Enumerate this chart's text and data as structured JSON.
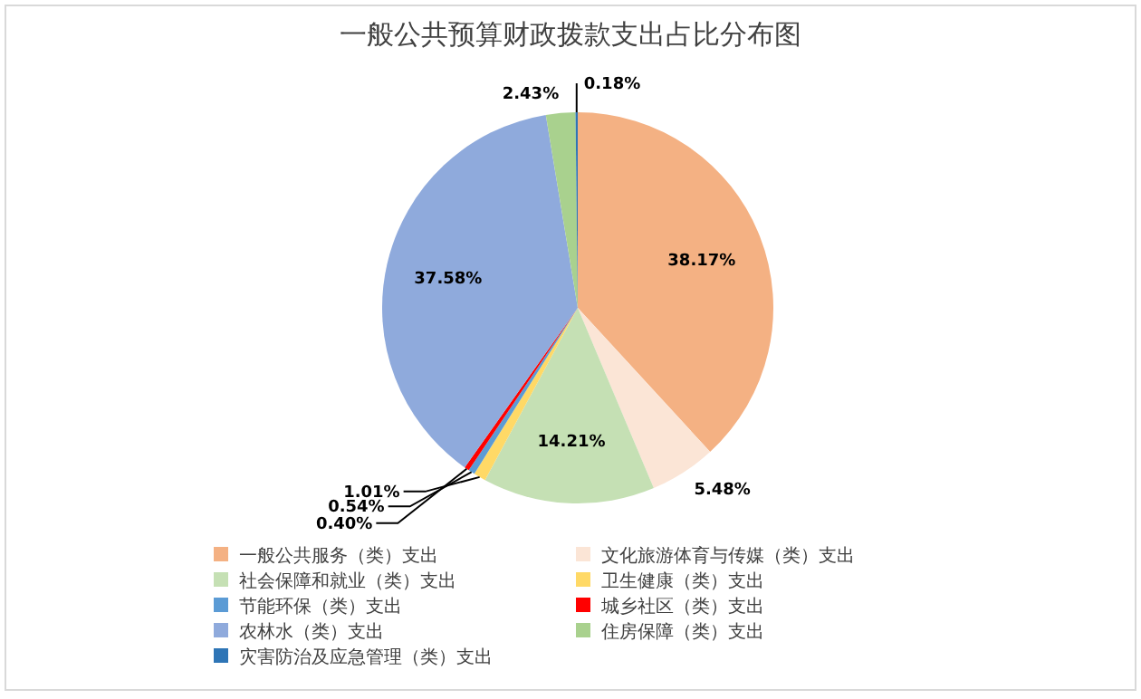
{
  "chart_data": {
    "type": "pie",
    "title": "一般公共预算财政拨款支出占比分布图",
    "categories": [
      "一般公共服务（类）支出",
      "文化旅游体育与传媒（类）支出",
      "社会保障和就业（类）支出",
      "卫生健康（类）支出",
      "节能环保（类）支出",
      "城乡社区（类）支出",
      "农林水（类）支出",
      "住房保障（类）支出",
      "灾害防治及应急管理（类）支出"
    ],
    "values": [
      38.17,
      5.48,
      14.21,
      1.01,
      0.54,
      0.4,
      37.58,
      2.43,
      0.18
    ],
    "value_labels": [
      "38.17%",
      "5.48%",
      "14.21%",
      "1.01%",
      "0.54%",
      "0.40%",
      "37.58%",
      "2.43%",
      "0.18%"
    ],
    "colors": [
      "#f4b183",
      "#fbe5d6",
      "#c5e0b4",
      "#ffd966",
      "#5b9bd5",
      "#ff0000",
      "#8faadc",
      "#a9d18e",
      "#2e75b6"
    ],
    "legend": "bottom"
  }
}
